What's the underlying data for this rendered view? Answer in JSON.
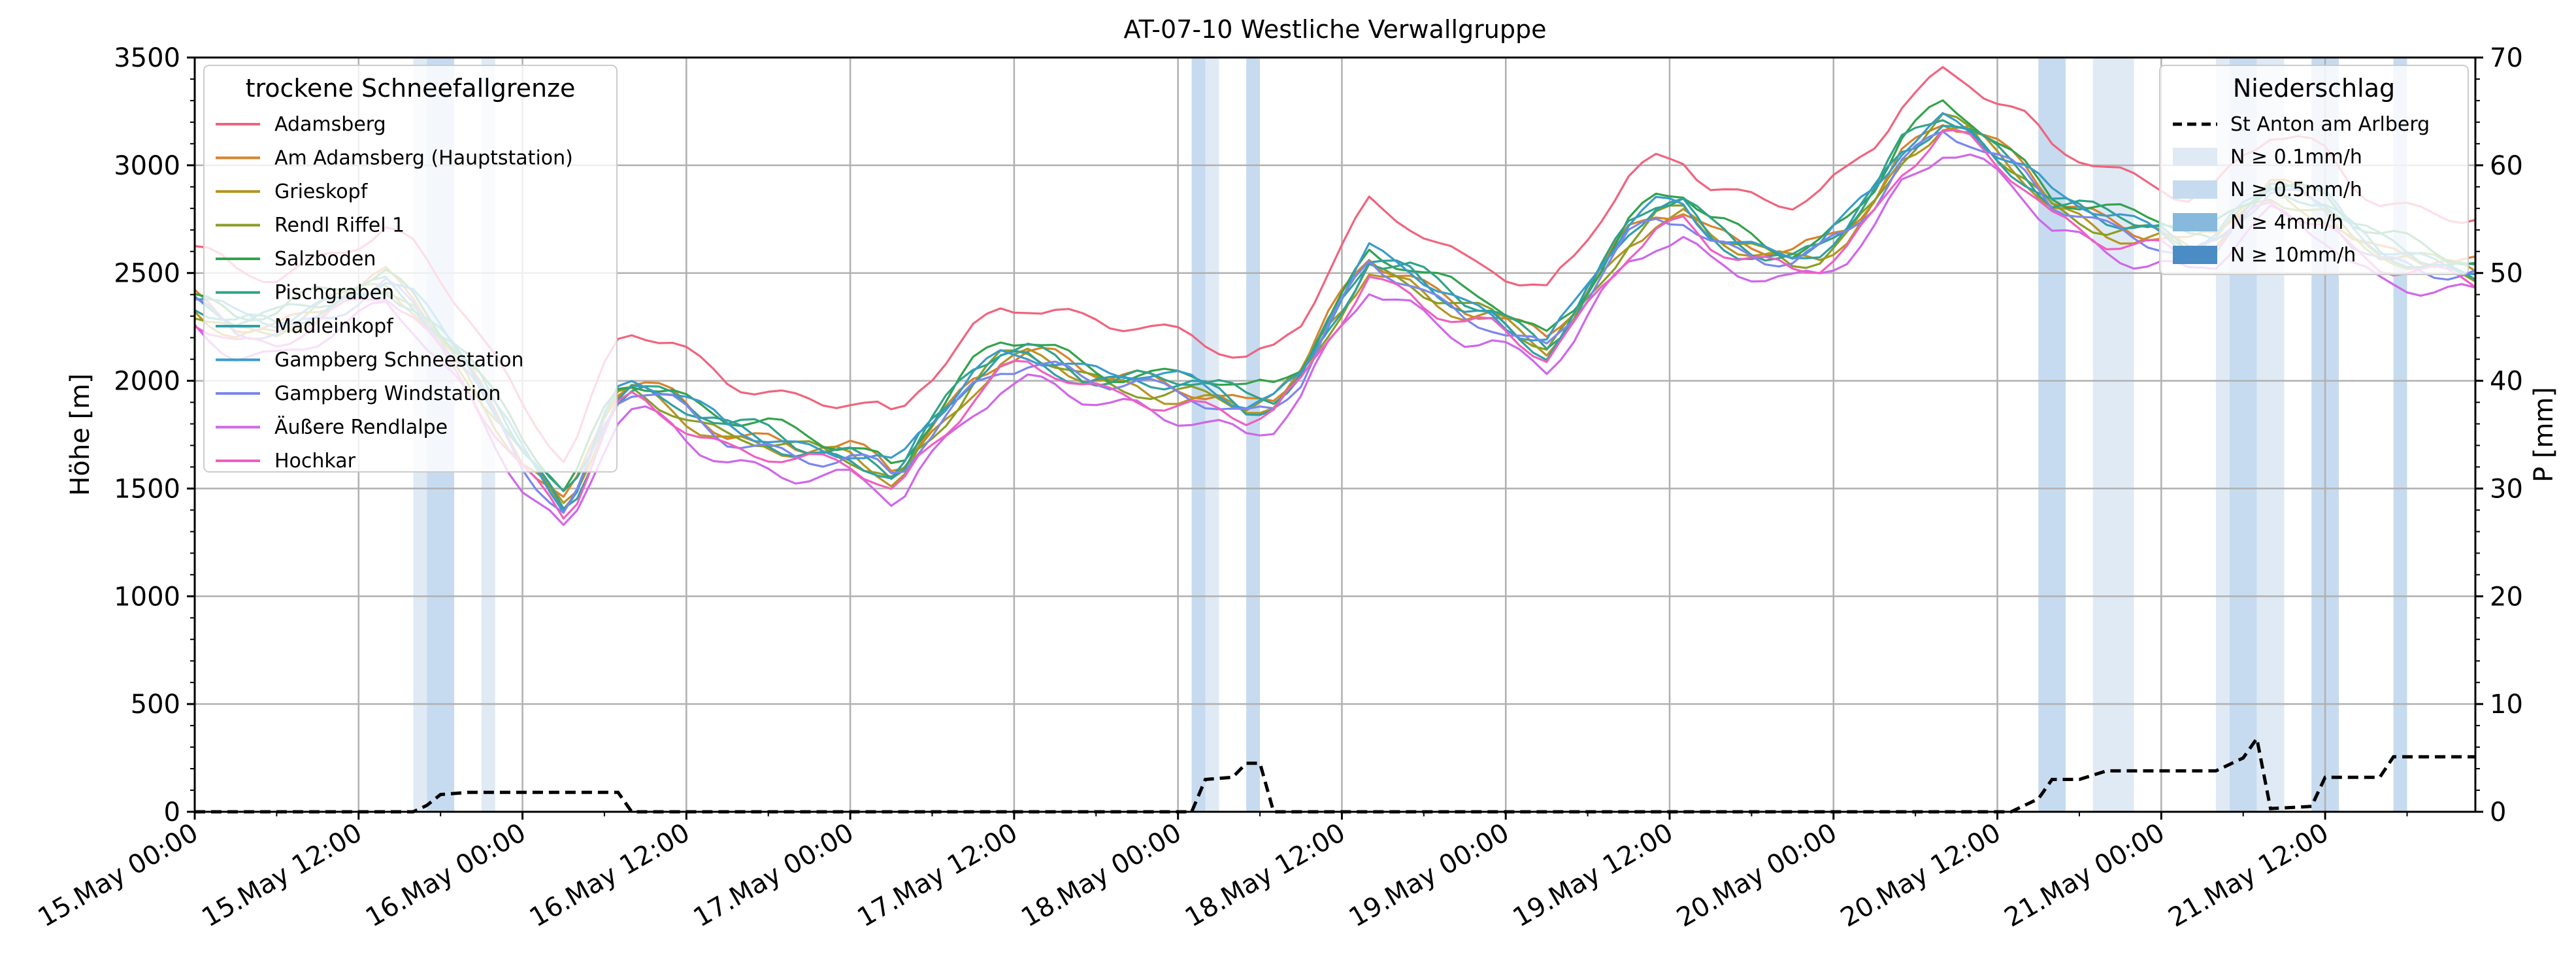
{
  "chart_data": {
    "type": "line",
    "title": "AT-07-10 Westliche Verwallgruppe",
    "ylabel_left": "Höhe [m]",
    "ylabel_right": "P [mm]",
    "y_left_range": [
      0,
      3500
    ],
    "y_right_range": [
      0,
      70
    ],
    "y_left_ticks": [
      "0",
      "500",
      "1000",
      "1500",
      "2000",
      "2500",
      "3000",
      "3500"
    ],
    "y_right_ticks": [
      "0",
      "10",
      "20",
      "30",
      "40",
      "50",
      "60",
      "70"
    ],
    "x_range_hours": [
      0,
      167
    ],
    "x_ticks": [
      "15.May 00:00",
      "15.May 12:00",
      "16.May 00:00",
      "16.May 12:00",
      "17.May 00:00",
      "17.May 12:00",
      "18.May 00:00",
      "18.May 12:00",
      "19.May 00:00",
      "19.May 12:00",
      "20.May 00:00",
      "20.May 12:00",
      "21.May 00:00",
      "21.May 12:00"
    ],
    "grid": true,
    "legend_left": {
      "title": "trockene Schneefallgrenze",
      "placement": "top-left",
      "entries": [
        "Adamsberg",
        "Am Adamsberg (Hauptstation)",
        "Grieskopf",
        "Rendl Riffel 1",
        "Salzboden",
        "Pischgraben",
        "Madleinkopf",
        "Gampberg Schneestation",
        "Gampberg Windstation",
        "Äußere Rendlalpe",
        "Hochkar"
      ]
    },
    "legend_right": {
      "title": "Niederschlag",
      "placement": "top-right",
      "line_entry": "St Anton am Arlberg",
      "band_entries": [
        "N ≥ 0.1mm/h",
        "N ≥ 0.5mm/h",
        "N ≥ 4mm/h",
        "N ≥ 10mm/h"
      ]
    },
    "series_colors": [
      "#f0647d",
      "#d9822b",
      "#b5951f",
      "#8a9e24",
      "#33a24b",
      "#30a386",
      "#2fa0a6",
      "#3a9bcc",
      "#7b86ee",
      "#cf67e9",
      "#f05fc1"
    ],
    "band_colors": [
      "#dfeaf5",
      "#c6dbef",
      "#86b9dc",
      "#4a8cc3"
    ],
    "precip_line_color": "#000000",
    "base_profile": [
      [
        0,
        2350
      ],
      [
        3,
        2250
      ],
      [
        6,
        2250
      ],
      [
        10,
        2350
      ],
      [
        14,
        2450
      ],
      [
        16,
        2350
      ],
      [
        18,
        2200
      ],
      [
        20,
        2050
      ],
      [
        22,
        1850
      ],
      [
        24,
        1650
      ],
      [
        26,
        1500
      ],
      [
        27,
        1420
      ],
      [
        28,
        1500
      ],
      [
        29,
        1650
      ],
      [
        30,
        1800
      ],
      [
        31,
        1920
      ],
      [
        32,
        1960
      ],
      [
        33,
        1950
      ],
      [
        35,
        1900
      ],
      [
        37,
        1820
      ],
      [
        39,
        1760
      ],
      [
        42,
        1720
      ],
      [
        44,
        1680
      ],
      [
        46,
        1660
      ],
      [
        48,
        1650
      ],
      [
        50,
        1600
      ],
      [
        51,
        1560
      ],
      [
        52,
        1600
      ],
      [
        53,
        1700
      ],
      [
        55,
        1850
      ],
      [
        57,
        2000
      ],
      [
        59,
        2100
      ],
      [
        61,
        2120
      ],
      [
        63,
        2080
      ],
      [
        65,
        2020
      ],
      [
        67,
        1990
      ],
      [
        69,
        1990
      ],
      [
        71,
        1970
      ],
      [
        73,
        1960
      ],
      [
        75,
        1930
      ],
      [
        77,
        1880
      ],
      [
        79,
        1900
      ],
      [
        81,
        2020
      ],
      [
        83,
        2250
      ],
      [
        85,
        2450
      ],
      [
        86,
        2550
      ],
      [
        87,
        2520
      ],
      [
        89,
        2480
      ],
      [
        91,
        2400
      ],
      [
        93,
        2330
      ],
      [
        95,
        2300
      ],
      [
        97,
        2220
      ],
      [
        99,
        2150
      ],
      [
        101,
        2300
      ],
      [
        103,
        2500
      ],
      [
        105,
        2680
      ],
      [
        107,
        2780
      ],
      [
        109,
        2800
      ],
      [
        111,
        2680
      ],
      [
        113,
        2620
      ],
      [
        115,
        2580
      ],
      [
        117,
        2560
      ],
      [
        119,
        2600
      ],
      [
        121,
        2700
      ],
      [
        123,
        2850
      ],
      [
        125,
        3050
      ],
      [
        127,
        3150
      ],
      [
        128,
        3200
      ],
      [
        130,
        3150
      ],
      [
        132,
        3050
      ],
      [
        134,
        2950
      ],
      [
        136,
        2820
      ],
      [
        138,
        2780
      ],
      [
        140,
        2730
      ],
      [
        142,
        2700
      ],
      [
        144,
        2680
      ],
      [
        146,
        2620
      ],
      [
        148,
        2650
      ],
      [
        150,
        2780
      ],
      [
        152,
        2880
      ],
      [
        154,
        2850
      ],
      [
        156,
        2800
      ],
      [
        158,
        2680
      ],
      [
        160,
        2600
      ],
      [
        163,
        2550
      ],
      [
        167,
        2500
      ]
    ],
    "series_offsets": [
      250,
      20,
      -20,
      -10,
      60,
      30,
      0,
      30,
      -20,
      -120,
      -60
    ],
    "precip_line": [
      [
        0,
        0
      ],
      [
        16,
        0
      ],
      [
        17,
        0.6
      ],
      [
        18,
        1.6
      ],
      [
        20,
        1.8
      ],
      [
        22,
        1.8
      ],
      [
        24,
        1.8
      ],
      [
        26,
        1.8
      ],
      [
        31,
        1.8
      ],
      [
        32,
        0
      ],
      [
        72,
        0
      ],
      [
        73,
        0
      ],
      [
        74,
        3.0
      ],
      [
        76,
        3.2
      ],
      [
        77,
        4.5
      ],
      [
        78,
        4.5
      ],
      [
        79,
        0
      ],
      [
        133,
        0
      ],
      [
        135,
        1.2
      ],
      [
        136,
        3.0
      ],
      [
        138,
        3.0
      ],
      [
        140,
        3.8
      ],
      [
        142,
        3.8
      ],
      [
        144,
        3.8
      ],
      [
        148,
        3.8
      ],
      [
        150,
        5.0
      ],
      [
        151,
        6.8
      ],
      [
        152,
        0.3
      ],
      [
        155,
        0.5
      ],
      [
        156,
        3.2
      ],
      [
        159,
        3.2
      ],
      [
        160,
        3.2
      ],
      [
        161,
        5.1
      ],
      [
        163,
        5.1
      ],
      [
        165,
        5.1
      ],
      [
        167,
        5.1
      ]
    ],
    "precip_bands": [
      [
        16,
        17,
        0
      ],
      [
        17,
        19,
        1
      ],
      [
        21,
        22,
        0
      ],
      [
        73,
        74,
        1
      ],
      [
        74,
        75,
        0
      ],
      [
        77,
        78,
        1
      ],
      [
        135,
        137,
        1
      ],
      [
        139,
        141,
        0
      ],
      [
        141,
        142,
        0
      ],
      [
        148,
        149,
        0
      ],
      [
        149,
        151,
        1
      ],
      [
        151,
        153,
        0
      ],
      [
        155,
        157,
        1
      ],
      [
        161,
        162,
        1
      ]
    ]
  }
}
